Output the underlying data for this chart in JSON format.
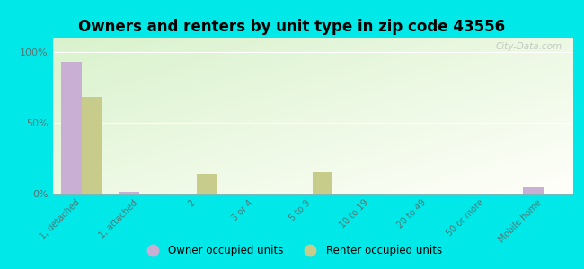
{
  "title": "Owners and renters by unit type in zip code 43556",
  "categories": [
    "1, detached",
    "1, attached",
    "2",
    "3 or 4",
    "5 to 9",
    "10 to 19",
    "20 to 49",
    "50 or more",
    "Mobile home"
  ],
  "owner_values": [
    93,
    1,
    0,
    0,
    0,
    0,
    0,
    0,
    5
  ],
  "renter_values": [
    68,
    0,
    14,
    0,
    15,
    0,
    0,
    0,
    0
  ],
  "owner_color": "#c9afd4",
  "renter_color": "#c8cc8a",
  "background_color": "#00e8e8",
  "title_fontsize": 12,
  "ylabel_ticks": [
    "0%",
    "50%",
    "100%"
  ],
  "ytick_vals": [
    0,
    50,
    100
  ],
  "ylim": [
    0,
    110
  ],
  "bar_width": 0.35,
  "legend_owner": "Owner occupied units",
  "legend_renter": "Renter occupied units",
  "watermark": "City-Data.com"
}
